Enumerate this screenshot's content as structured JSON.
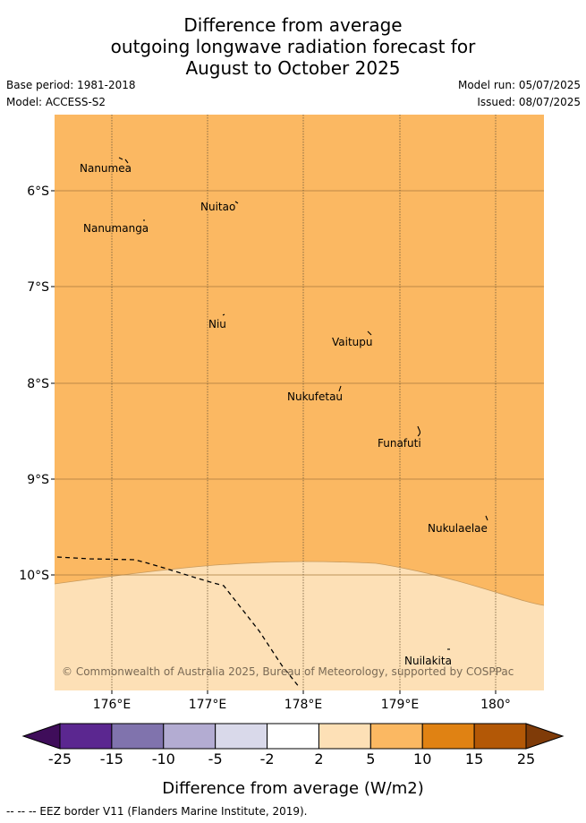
{
  "title": {
    "line1": "Difference from average",
    "line2": "outgoing longwave radiation forecast for",
    "line3": "August to October 2025"
  },
  "meta": {
    "base_period": "Base period: 1981-2018",
    "model": "Model: ACCESS-S2",
    "model_run": "Model run: 05/07/2025",
    "issued": "Issued: 08/07/2025"
  },
  "map": {
    "lat_ticks": [
      "6°S",
      "7°S",
      "8°S",
      "9°S",
      "10°S"
    ],
    "lon_ticks": [
      "176°E",
      "177°E",
      "178°E",
      "179°E",
      "180°"
    ],
    "islands": [
      {
        "name": "Nanumea"
      },
      {
        "name": "Nuitao"
      },
      {
        "name": "Nanumanga"
      },
      {
        "name": "Niu"
      },
      {
        "name": "Vaitupu"
      },
      {
        "name": "Nukufetau"
      },
      {
        "name": "Funafuti"
      },
      {
        "name": "Nukulaelae"
      },
      {
        "name": "Nuilakita"
      }
    ],
    "copyright": "© Commonwealth of Australia 2025, Bureau of Meteorology, supported by COSPPac",
    "colors": {
      "band_5_10": "#fbb862",
      "band_2_5": "#fde0b6"
    }
  },
  "colorbar": {
    "label": "Difference from average (W/m2)",
    "ticks": [
      "-25",
      "-15",
      "-10",
      "-5",
      "-2",
      "2",
      "5",
      "10",
      "15",
      "25"
    ],
    "colors": [
      "#3f0d5a",
      "#5b2790",
      "#8073ad",
      "#b3acd2",
      "#d9d9ea",
      "#ffffff",
      "#fde0b6",
      "#fbb862",
      "#e08213",
      "#b35806",
      "#7f3b08"
    ]
  },
  "footer": "--  --  -- EEZ border V11 (Flanders Marine Institute, 2019)."
}
